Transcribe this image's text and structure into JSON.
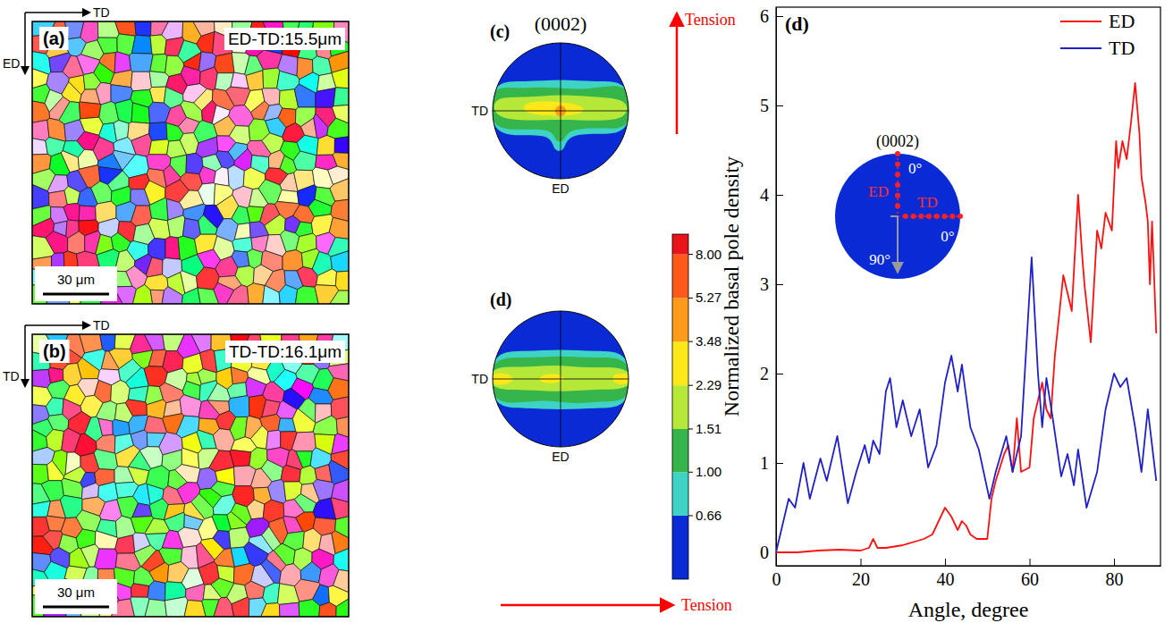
{
  "maps": [
    {
      "panel": "(a)",
      "label": "ED-TD:15.5μm",
      "scale_bar": "30 μm",
      "axes": [
        "TD",
        "ED"
      ]
    },
    {
      "panel": "(b)",
      "label": "TD-TD:16.1μm",
      "scale_bar": "30 μm",
      "axes": [
        "TD",
        "TD"
      ]
    }
  ],
  "pole_figures": {
    "title": "(0002)",
    "tension": "Tension",
    "panels": [
      {
        "panel": "(c)",
        "axes": [
          "TD",
          "ED"
        ]
      },
      {
        "panel": "(d)",
        "axes": [
          "TD",
          "ED"
        ]
      }
    ],
    "colorbar": {
      "range": [
        0.36,
        9.7
      ],
      "log": true,
      "ticks": [
        0.66,
        {
          "value": 1,
          "label": "1.00"
        },
        1.51,
        2.29,
        3.48,
        5.27,
        {
          "value": 8,
          "label": "8.00"
        }
      ],
      "colors": [
        "#0a2ad6",
        "#3fd3c6",
        "#35b54a",
        "#b6e83a",
        "#ffe81a",
        "#ff9b1a",
        "#ff5a1a",
        "#e8141a"
      ]
    }
  },
  "chart_data": {
    "type": "line",
    "panel": "(d)",
    "xlabel": "Angle, degree",
    "ylabel": "Normalized basal pole density",
    "xlim": [
      0,
      91
    ],
    "ylim": [
      -0.15,
      6.1
    ],
    "xticks": [
      0,
      20,
      40,
      60,
      80
    ],
    "yticks": [
      0,
      1,
      2,
      3,
      4,
      5,
      6
    ],
    "legend": "upper right",
    "series": [
      {
        "name": "ED",
        "color": "#ff1010",
        "x": [
          0,
          5,
          10,
          15,
          20,
          22,
          23,
          24,
          26,
          30,
          35,
          37,
          38,
          40,
          41.5,
          43,
          44,
          45,
          46,
          47.5,
          50,
          51,
          52,
          54,
          55,
          56,
          57,
          58,
          60,
          61,
          63,
          64,
          65,
          66,
          68,
          69,
          70,
          71.5,
          72.5,
          73,
          74.5,
          76,
          77,
          78,
          79.5,
          80.5,
          81,
          82,
          83,
          84,
          85,
          86,
          86.5,
          87.5,
          88,
          88.5,
          89,
          90
        ],
        "values": [
          0,
          0,
          0.02,
          0.03,
          0.02,
          0.05,
          0.15,
          0.05,
          0.05,
          0.08,
          0.15,
          0.2,
          0.3,
          0.5,
          0.4,
          0.25,
          0.35,
          0.3,
          0.2,
          0.15,
          0.15,
          0.6,
          0.8,
          1.1,
          1.2,
          0.9,
          1.5,
          0.9,
          0.95,
          1.5,
          1.9,
          1.6,
          1.5,
          2.2,
          3.1,
          2.9,
          2.7,
          4.0,
          3.3,
          3.0,
          2.35,
          3.6,
          3.4,
          3.8,
          3.6,
          4.6,
          4.3,
          4.6,
          4.4,
          4.8,
          5.25,
          4.7,
          4.2,
          3.9,
          3.7,
          3.0,
          3.7,
          2.45
        ]
      },
      {
        "name": "TD",
        "color": "#2020c8",
        "x": [
          0,
          3,
          4.5,
          6.5,
          8,
          10.5,
          12,
          14.5,
          17,
          19,
          21,
          22,
          23,
          24.5,
          26,
          27,
          28.5,
          30,
          32,
          34,
          36,
          38,
          40,
          41.5,
          43,
          44,
          46,
          48,
          50.5,
          52,
          54.5,
          56,
          58,
          60.5,
          62,
          63,
          64,
          65.5,
          67.5,
          69,
          70.5,
          71.5,
          73.5,
          76,
          78,
          80,
          81.5,
          83,
          85,
          86.5,
          88,
          90
        ],
        "values": [
          0,
          0.6,
          0.5,
          1.0,
          0.6,
          1.05,
          0.8,
          1.3,
          0.55,
          0.9,
          1.2,
          1.0,
          1.25,
          1.1,
          1.8,
          1.95,
          1.4,
          1.7,
          1.3,
          1.6,
          0.95,
          1.2,
          1.9,
          2.2,
          1.8,
          2.1,
          1.4,
          1.15,
          0.6,
          0.9,
          1.3,
          0.9,
          1.3,
          3.3,
          2.0,
          1.4,
          1.95,
          1.5,
          0.85,
          1.1,
          0.75,
          1.15,
          0.5,
          0.9,
          1.6,
          2.0,
          1.85,
          1.95,
          1.4,
          0.9,
          1.6,
          0.8
        ]
      }
    ],
    "inset": {
      "title": "(0002)",
      "labels": [
        "0°",
        "ED",
        "TD",
        "90°",
        "0°"
      ]
    }
  }
}
